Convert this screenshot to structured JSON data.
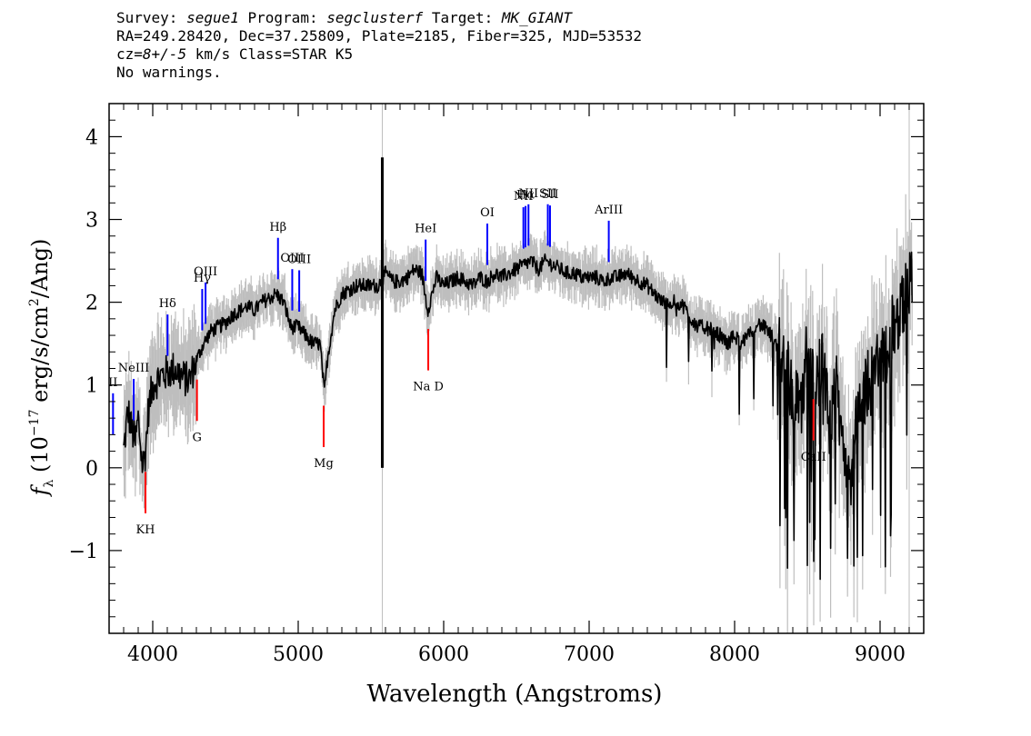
{
  "header": {
    "survey_label": "Survey:",
    "survey": "segue1",
    "program_label": "Program:",
    "program": "segclusterf",
    "target_label": "Target:",
    "target": "MK_GIANT",
    "line2": "RA=249.28420, Dec=37.25809, Plate=2185, Fiber=325, MJD=53532",
    "cz_label": "cz=",
    "cz_value": "8+/-5",
    "cz_rest": " km/s Class=STAR K5",
    "line4": "No warnings."
  },
  "chart_data": {
    "type": "line",
    "title": "",
    "xlabel": "Wavelength (Angstroms)",
    "ylabel": "f_λ (10^-17 erg/s/cm^2/Ang)",
    "xlim": [
      3700,
      9300
    ],
    "ylim": [
      -2,
      4.4
    ],
    "xticks": [
      4000,
      5000,
      6000,
      7000,
      8000,
      9000
    ],
    "yticks": [
      -1,
      0,
      1,
      2,
      3,
      4
    ],
    "grid": false,
    "series": [
      {
        "role": "flux",
        "color": "#000000",
        "x": [
          3800,
          3830,
          3850,
          3880,
          3900,
          3930,
          3950,
          3970,
          4000,
          4050,
          4100,
          4150,
          4200,
          4250,
          4300,
          4350,
          4400,
          4450,
          4500,
          4550,
          4600,
          4650,
          4700,
          4750,
          4800,
          4850,
          4900,
          4950,
          5000,
          5050,
          5100,
          5150,
          5180,
          5200,
          5250,
          5300,
          5350,
          5400,
          5450,
          5500,
          5550,
          5600,
          5650,
          5700,
          5750,
          5800,
          5850,
          5890,
          5950,
          6000,
          6050,
          6100,
          6150,
          6200,
          6250,
          6300,
          6350,
          6400,
          6450,
          6500,
          6550,
          6600,
          6650,
          6700,
          6750,
          6800,
          6850,
          6900,
          6950,
          7000,
          7050,
          7100,
          7150,
          7200,
          7250,
          7300,
          7350,
          7400,
          7450,
          7500,
          7550,
          7600,
          7650,
          7700,
          7750,
          7800,
          7850,
          7900,
          7950,
          8000,
          8050,
          8100,
          8150,
          8200,
          8250,
          8300,
          8350,
          8400,
          8450,
          8500,
          8550,
          8600,
          8650,
          8700,
          8750,
          8800,
          8850,
          8900,
          8950,
          9000,
          9050,
          9100,
          9150,
          9200
        ],
        "y": [
          0.2,
          0.7,
          0.5,
          0.3,
          0.6,
          0.0,
          0.2,
          0.7,
          1.0,
          1.1,
          1.15,
          1.2,
          1.1,
          1.05,
          1.3,
          1.5,
          1.65,
          1.7,
          1.75,
          1.85,
          1.9,
          1.95,
          1.9,
          2.0,
          2.05,
          2.1,
          2.0,
          1.7,
          1.7,
          1.6,
          1.5,
          1.5,
          0.9,
          1.3,
          1.9,
          2.1,
          2.15,
          2.2,
          2.2,
          2.2,
          2.2,
          2.35,
          2.25,
          2.25,
          2.3,
          2.4,
          2.35,
          1.9,
          2.3,
          2.2,
          2.25,
          2.3,
          2.25,
          2.2,
          2.3,
          2.25,
          2.35,
          2.3,
          2.35,
          2.4,
          2.45,
          2.5,
          2.4,
          2.5,
          2.45,
          2.4,
          2.35,
          2.35,
          2.3,
          2.3,
          2.3,
          2.25,
          2.3,
          2.3,
          2.35,
          2.3,
          2.25,
          2.2,
          2.1,
          2.0,
          2.0,
          2.0,
          1.95,
          1.8,
          1.7,
          1.7,
          1.65,
          1.6,
          1.5,
          1.6,
          1.5,
          1.6,
          1.75,
          1.7,
          1.6,
          1.4,
          1.3,
          0.9,
          0.6,
          1.5,
          1.0,
          1.3,
          0.5,
          0.9,
          0.2,
          0.0,
          0.6,
          1.0,
          1.1,
          1.3,
          1.5,
          1.7,
          1.9,
          2.2
        ]
      },
      {
        "role": "uncertainty",
        "color": "#bebebe",
        "x": [],
        "y": []
      }
    ],
    "emission_lines": [
      {
        "label": "NeIII",
        "x": 3869
      },
      {
        "label": "Hδ",
        "x": 4102
      },
      {
        "label": "Hγ",
        "x": 4340
      },
      {
        "label": "OIII",
        "x": 4363
      },
      {
        "label": "Hβ",
        "x": 4861
      },
      {
        "label": "OIII",
        "x": 4959
      },
      {
        "label": "OIII",
        "x": 5007
      },
      {
        "label": "HeI",
        "x": 5876
      },
      {
        "label": "OI",
        "x": 6300
      },
      {
        "label": "NII",
        "x": 6548
      },
      {
        "label": "Hα",
        "x": 6563
      },
      {
        "label": "NII",
        "x": 6583
      },
      {
        "label": "SII",
        "x": 6716
      },
      {
        "label": "SII",
        "x": 6731
      },
      {
        "label": "ArIII",
        "x": 7135
      },
      {
        "label": "II",
        "x": 3727
      }
    ],
    "absorption_lines": [
      {
        "label": "KH",
        "x": 3950
      },
      {
        "label": "G",
        "x": 4304
      },
      {
        "label": "Mg",
        "x": 5175
      },
      {
        "label": "Na D",
        "x": 5894
      },
      {
        "label": "CaII",
        "x": 8542
      }
    ],
    "colors": {
      "emission": "#0000ff",
      "absorption": "#ff0000",
      "flux": "#000000",
      "error": "#bebebe"
    }
  }
}
